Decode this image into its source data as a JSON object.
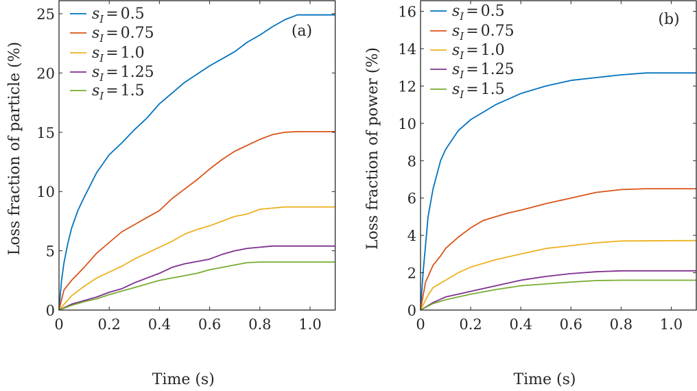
{
  "chart_data": [
    {
      "type": "line",
      "panel_label": "(a)",
      "xlabel": "Time (s)",
      "ylabel": "Loss fraction of particle (%)",
      "xlim": [
        0,
        1.1
      ],
      "ylim": [
        0,
        26.1
      ],
      "xticks": [
        0,
        0.2,
        0.4,
        0.6,
        0.8,
        1.0
      ],
      "xtick_labels": [
        "0",
        "0.2",
        "0.4",
        "0.6",
        "0.8",
        "1.0"
      ],
      "yticks": [
        0,
        5,
        10,
        15,
        20,
        25
      ],
      "ytick_labels": [
        "0",
        "5",
        "10",
        "15",
        "20",
        "25"
      ],
      "legend_position": "top-left",
      "series": [
        {
          "name": "s_I = 0.5",
          "label_value": "0.5",
          "color": "#0072BD",
          "x": [
            0,
            0.01,
            0.02,
            0.035,
            0.05,
            0.075,
            0.1,
            0.15,
            0.2,
            0.25,
            0.3,
            0.35,
            0.4,
            0.45,
            0.5,
            0.55,
            0.6,
            0.65,
            0.7,
            0.75,
            0.8,
            0.85,
            0.9,
            0.95,
            1.1
          ],
          "y": [
            0,
            2.5,
            4.0,
            5.6,
            6.9,
            8.4,
            9.5,
            11.6,
            13.1,
            14.1,
            15.2,
            16.2,
            17.4,
            18.3,
            19.2,
            19.9,
            20.6,
            21.2,
            21.8,
            22.6,
            23.2,
            23.9,
            24.5,
            24.9,
            24.9
          ]
        },
        {
          "name": "s_I = 0.75",
          "label_value": "0.75",
          "color": "#D95319",
          "x": [
            0,
            0.02,
            0.05,
            0.1,
            0.15,
            0.2,
            0.25,
            0.3,
            0.35,
            0.4,
            0.45,
            0.5,
            0.55,
            0.6,
            0.65,
            0.7,
            0.75,
            0.8,
            0.85,
            0.9,
            0.95,
            1.1
          ],
          "y": [
            0,
            1.7,
            2.5,
            3.6,
            4.8,
            5.7,
            6.6,
            7.2,
            7.8,
            8.4,
            9.4,
            10.2,
            11.0,
            11.9,
            12.7,
            13.4,
            13.9,
            14.4,
            14.8,
            15.0,
            15.05,
            15.05
          ]
        },
        {
          "name": "s_I = 1.0",
          "label_value": "1.0",
          "color": "#EDB120",
          "x": [
            0,
            0.05,
            0.1,
            0.15,
            0.2,
            0.25,
            0.3,
            0.35,
            0.4,
            0.45,
            0.5,
            0.55,
            0.6,
            0.65,
            0.7,
            0.75,
            0.8,
            0.85,
            0.9,
            1.1
          ],
          "y": [
            0,
            1.2,
            2.0,
            2.7,
            3.2,
            3.7,
            4.3,
            4.8,
            5.3,
            5.8,
            6.4,
            6.8,
            7.1,
            7.5,
            7.9,
            8.1,
            8.5,
            8.6,
            8.7,
            8.7
          ]
        },
        {
          "name": "s_I = 1.25",
          "label_value": "1.25",
          "color": "#7E2F8E",
          "x": [
            0,
            0.05,
            0.1,
            0.15,
            0.2,
            0.25,
            0.3,
            0.35,
            0.4,
            0.45,
            0.5,
            0.55,
            0.6,
            0.65,
            0.7,
            0.75,
            0.8,
            0.85,
            1.1
          ],
          "y": [
            0,
            0.5,
            0.8,
            1.1,
            1.5,
            1.8,
            2.3,
            2.7,
            3.1,
            3.6,
            3.9,
            4.1,
            4.3,
            4.7,
            5.0,
            5.2,
            5.3,
            5.4,
            5.4
          ]
        },
        {
          "name": "s_I = 1.5",
          "label_value": "1.5",
          "color": "#77AC30",
          "x": [
            0,
            0.05,
            0.1,
            0.15,
            0.2,
            0.25,
            0.3,
            0.35,
            0.4,
            0.45,
            0.5,
            0.55,
            0.6,
            0.65,
            0.7,
            0.75,
            0.8,
            1.1
          ],
          "y": [
            0,
            0.4,
            0.7,
            0.95,
            1.3,
            1.6,
            1.9,
            2.2,
            2.5,
            2.7,
            2.9,
            3.1,
            3.4,
            3.6,
            3.8,
            4.0,
            4.05,
            4.05
          ]
        }
      ]
    },
    {
      "type": "line",
      "panel_label": "(b)",
      "xlabel": "Time (s)",
      "ylabel": "Loss fraction of power (%)",
      "xlim": [
        0,
        1.1
      ],
      "ylim": [
        0,
        16.57
      ],
      "xticks": [
        0,
        0.2,
        0.4,
        0.6,
        0.8,
        1.0
      ],
      "xtick_labels": [
        "0",
        "0.2",
        "0.4",
        "0.6",
        "0.8",
        "1.0"
      ],
      "yticks": [
        0,
        2,
        4,
        6,
        8,
        10,
        12,
        14,
        16
      ],
      "ytick_labels": [
        "0",
        "2",
        "4",
        "6",
        "8",
        "10",
        "12",
        "14",
        "16"
      ],
      "legend_position": "top-left",
      "series": [
        {
          "name": "s_I = 0.5",
          "label_value": "0.5",
          "color": "#0072BD",
          "x": [
            0,
            0.01,
            0.03,
            0.05,
            0.08,
            0.1,
            0.15,
            0.2,
            0.25,
            0.3,
            0.35,
            0.4,
            0.5,
            0.6,
            0.7,
            0.8,
            0.9,
            1.1
          ],
          "y": [
            0,
            2.0,
            5.0,
            6.5,
            8.0,
            8.6,
            9.6,
            10.2,
            10.6,
            11.0,
            11.3,
            11.6,
            12.0,
            12.3,
            12.45,
            12.6,
            12.7,
            12.7
          ]
        },
        {
          "name": "s_I = 0.75",
          "label_value": "0.75",
          "color": "#D95319",
          "x": [
            0,
            0.02,
            0.05,
            0.08,
            0.1,
            0.15,
            0.2,
            0.25,
            0.3,
            0.35,
            0.4,
            0.5,
            0.6,
            0.7,
            0.8,
            0.9,
            1.1
          ],
          "y": [
            0,
            1.5,
            2.4,
            2.9,
            3.3,
            3.9,
            4.4,
            4.8,
            5.0,
            5.2,
            5.35,
            5.7,
            6.0,
            6.3,
            6.45,
            6.5,
            6.5
          ]
        },
        {
          "name": "s_I = 1.0",
          "label_value": "1.0",
          "color": "#EDB120",
          "x": [
            0,
            0.03,
            0.05,
            0.1,
            0.15,
            0.2,
            0.3,
            0.4,
            0.5,
            0.6,
            0.7,
            0.8,
            1.1
          ],
          "y": [
            0,
            0.8,
            1.2,
            1.6,
            2.0,
            2.3,
            2.7,
            3.0,
            3.3,
            3.45,
            3.6,
            3.7,
            3.72
          ]
        },
        {
          "name": "s_I = 1.25",
          "label_value": "1.25",
          "color": "#7E2F8E",
          "x": [
            0,
            0.05,
            0.1,
            0.15,
            0.2,
            0.3,
            0.4,
            0.5,
            0.6,
            0.7,
            0.8,
            1.1
          ],
          "y": [
            0,
            0.4,
            0.7,
            0.85,
            1.0,
            1.3,
            1.6,
            1.8,
            1.95,
            2.05,
            2.1,
            2.1
          ]
        },
        {
          "name": "s_I = 1.5",
          "label_value": "1.5",
          "color": "#77AC30",
          "x": [
            0,
            0.05,
            0.1,
            0.2,
            0.3,
            0.4,
            0.5,
            0.6,
            0.7,
            0.8,
            1.1
          ],
          "y": [
            0,
            0.35,
            0.55,
            0.85,
            1.1,
            1.3,
            1.4,
            1.5,
            1.58,
            1.6,
            1.6
          ]
        }
      ]
    }
  ],
  "legend_symbol": "s",
  "legend_subscript": "I",
  "legend_equals": "="
}
